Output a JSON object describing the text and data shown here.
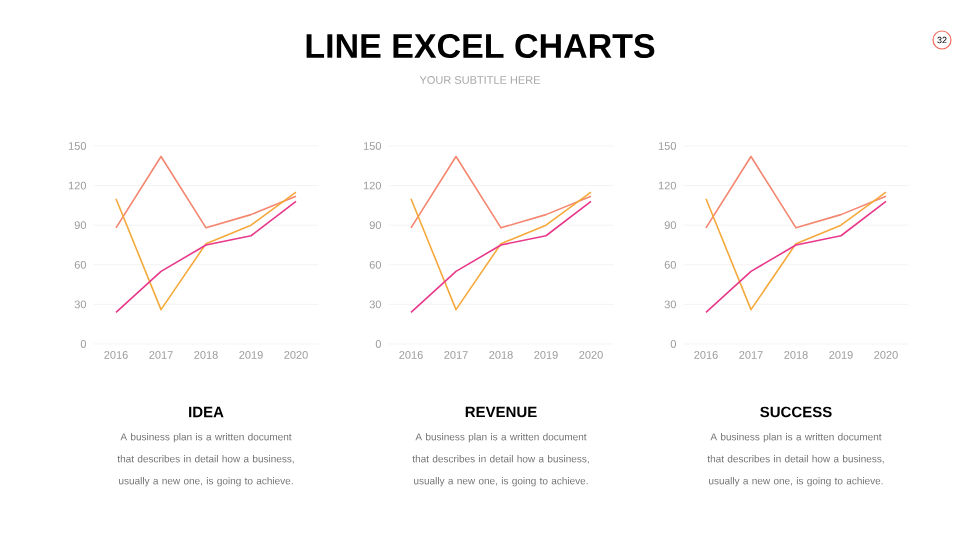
{
  "chart_data": [
    {
      "type": "other",
      "title": "LINE EXCEL CHARTS",
      "subtitle": "YOUR SUBTITLE HERE",
      "annotations": [
        "32"
      ]
    },
    {
      "type": "line",
      "title": "IDEA",
      "annotations": [
        "A business plan is a written document that describes in detail how a business, usually a new one, is going to achieve."
      ],
      "categories": [
        "2016",
        "2017",
        "2018",
        "2019",
        "2020"
      ],
      "ylim": [
        0,
        150
      ],
      "yticks": [
        0,
        30,
        60,
        90,
        120,
        150
      ],
      "grid": "y",
      "series": [
        {
          "color": "#f4866f",
          "values": [
            88,
            142,
            88,
            98,
            112
          ]
        },
        {
          "color": "#f5a93b",
          "values": [
            110,
            26,
            76,
            90,
            115
          ]
        },
        {
          "color": "#e8388a",
          "values": [
            24,
            55,
            75,
            82,
            108
          ]
        }
      ]
    },
    {
      "type": "line",
      "title": "REVENUE",
      "annotations": [
        "A business plan is a written document that describes in detail how a business, usually a new one, is going to achieve."
      ],
      "categories": [
        "2016",
        "2017",
        "2018",
        "2019",
        "2020"
      ],
      "ylim": [
        0,
        150
      ],
      "yticks": [
        0,
        30,
        60,
        90,
        120,
        150
      ],
      "grid": "y",
      "series": [
        {
          "color": "#f4866f",
          "values": [
            88,
            142,
            88,
            98,
            112
          ]
        },
        {
          "color": "#f5a93b",
          "values": [
            110,
            26,
            76,
            90,
            115
          ]
        },
        {
          "color": "#e8388a",
          "values": [
            24,
            55,
            75,
            82,
            108
          ]
        }
      ]
    },
    {
      "type": "line",
      "title": "SUCCESS",
      "annotations": [
        "A business plan is a written document that describes in detail how a business, usually a new one, is going to achieve."
      ],
      "categories": [
        "2016",
        "2017",
        "2018",
        "2019",
        "2020"
      ],
      "ylim": [
        0,
        150
      ],
      "yticks": [
        0,
        30,
        60,
        90,
        120,
        150
      ],
      "grid": "y",
      "series": [
        {
          "color": "#f4866f",
          "values": [
            88,
            142,
            88,
            98,
            112
          ]
        },
        {
          "color": "#f5a93b",
          "values": [
            110,
            26,
            76,
            90,
            115
          ]
        },
        {
          "color": "#e8388a",
          "values": [
            24,
            55,
            75,
            82,
            108
          ]
        }
      ]
    }
  ]
}
